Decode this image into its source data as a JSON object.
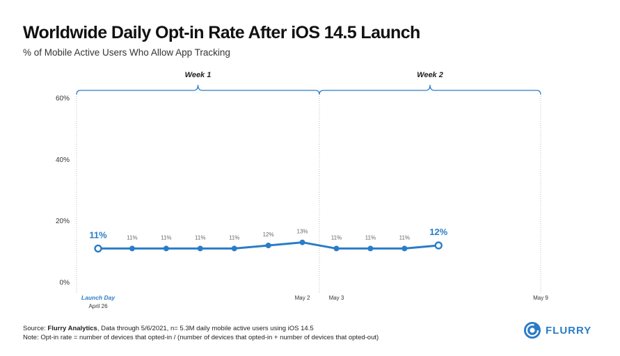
{
  "header": {
    "title": "Worldwide Daily Opt-in Rate After iOS 14.5 Launch",
    "subtitle": "% of Mobile Active Users Who Allow App Tracking"
  },
  "chart_data": {
    "type": "line",
    "title": "Worldwide Daily Opt-in Rate After iOS 14.5 Launch",
    "subtitle": "% of Mobile Active Users Who Allow App Tracking",
    "xlabel": "",
    "ylabel": "",
    "ylim": [
      0,
      60
    ],
    "yticks": [
      0,
      20,
      40,
      60
    ],
    "ytick_labels": [
      "0%",
      "20%",
      "40%",
      "60%"
    ],
    "grid": false,
    "x_days": 14,
    "series": [
      {
        "name": "Opt-in Rate",
        "color": "#2a7cc7",
        "values": [
          11,
          11,
          11,
          11,
          11,
          12,
          13,
          11,
          11,
          11,
          12
        ],
        "labels": [
          "11%",
          "11%",
          "11%",
          "11%",
          "11%",
          "12%",
          "13%",
          "11%",
          "11%",
          "11%",
          "12%"
        ],
        "highlight": [
          0,
          10
        ]
      }
    ],
    "x_tick_labels": [
      {
        "index": 0,
        "label": "Launch Day",
        "sublabel": "April 26",
        "highlight": true
      },
      {
        "index": 6,
        "label": "May 2"
      },
      {
        "index": 7,
        "label": "May 3"
      },
      {
        "index": 13,
        "label": "May 9"
      }
    ],
    "annotations": [
      {
        "label": "Week 1",
        "start": 0,
        "end": 6
      },
      {
        "label": "Week 2",
        "start": 7,
        "end": 13
      }
    ]
  },
  "footer": {
    "source_prefix": "Source: ",
    "source_name": "Flurry Analytics",
    "source_rest": ", Data through 5/6/2021, n= 5.3M daily mobile active users using iOS 14.5",
    "note": "Note: Opt-in rate = number of devices that opted-in / (number of devices that opted-in + number of devices that opted-out)"
  },
  "logo": {
    "text": "FLURRY",
    "color": "#2a7cc7"
  }
}
